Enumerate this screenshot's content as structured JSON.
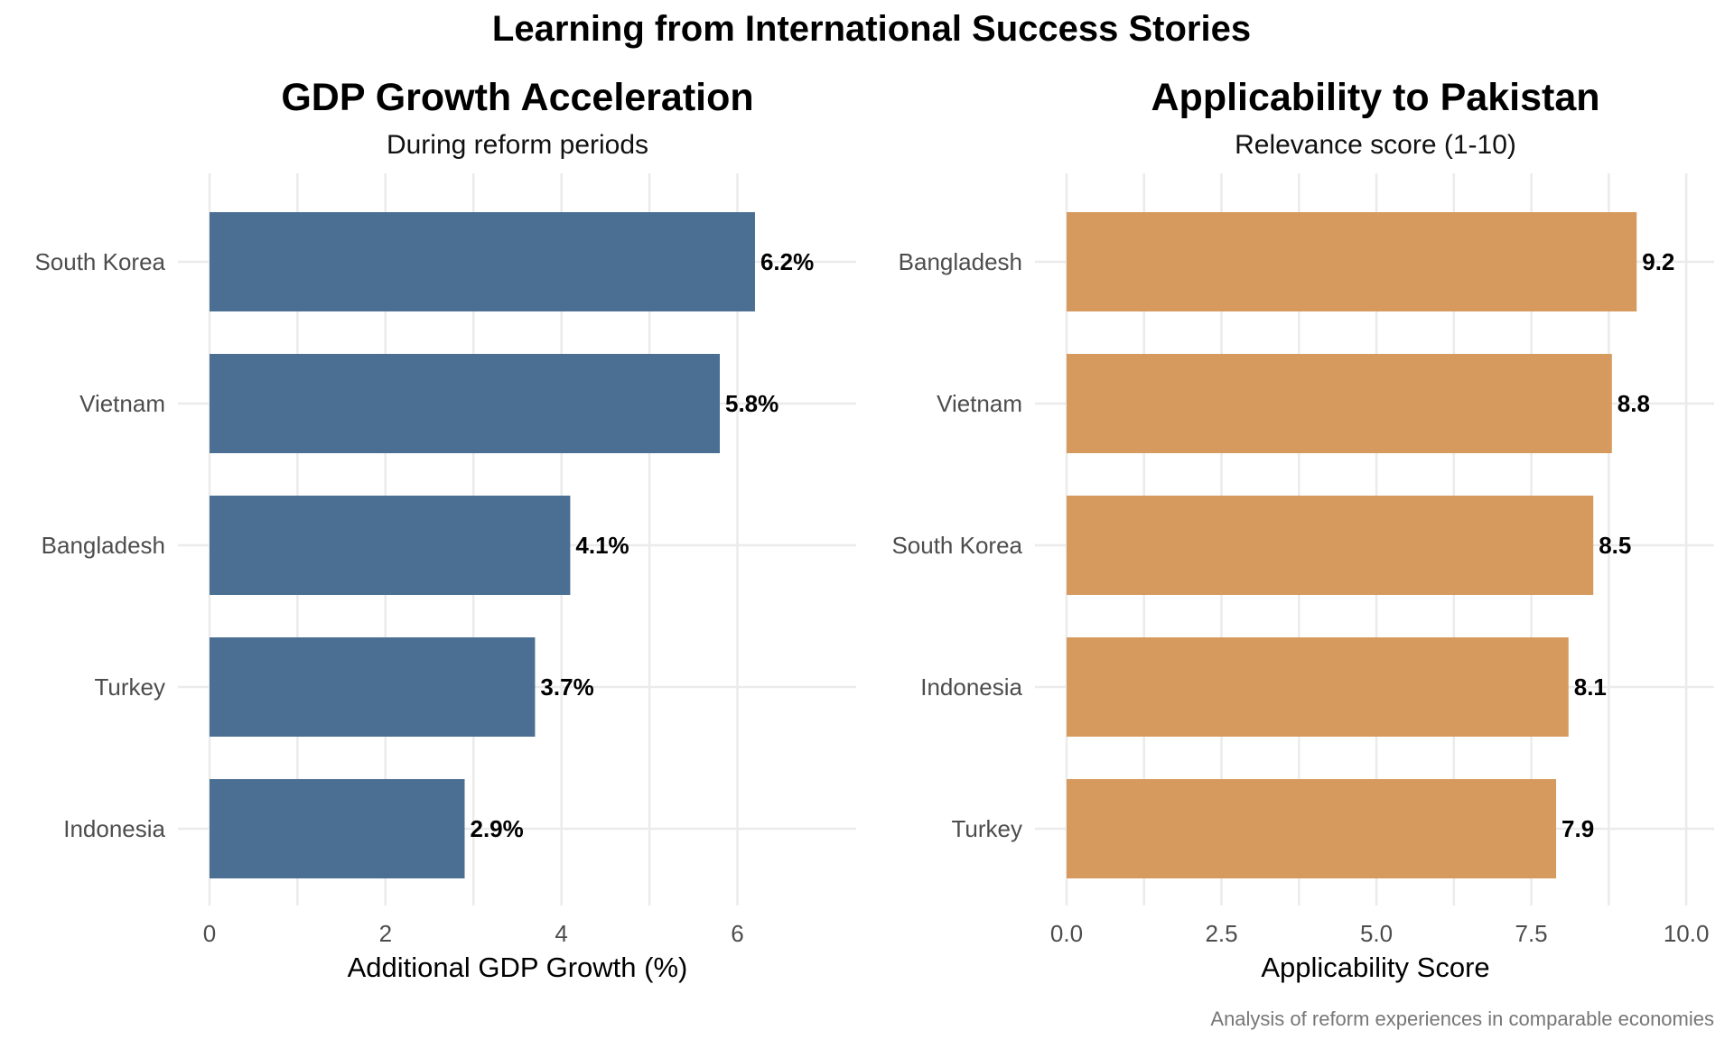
{
  "title": "Learning from International Success Stories",
  "caption": "Analysis of reform experiences in comparable economies",
  "chart_data": [
    {
      "type": "bar",
      "orientation": "horizontal",
      "title": "GDP Growth Acceleration",
      "subtitle": "During reform periods",
      "xlabel": "Additional GDP Growth (%)",
      "ylabel": "",
      "categories": [
        "South Korea",
        "Vietnam",
        "Bangladesh",
        "Turkey",
        "Indonesia"
      ],
      "values": [
        6.2,
        5.8,
        4.1,
        3.7,
        2.9
      ],
      "data_labels": [
        "6.2%",
        "5.8%",
        "4.1%",
        "3.7%",
        "2.9%"
      ],
      "xlim": [
        0,
        7.35
      ],
      "xticks": [
        0,
        2,
        4,
        6
      ],
      "xtick_labels": [
        "0",
        "2",
        "4",
        "6"
      ],
      "color": "#4a6f93",
      "grid": true,
      "legend": "none"
    },
    {
      "type": "bar",
      "orientation": "horizontal",
      "title": "Applicability to Pakistan",
      "subtitle": "Relevance score (1-10)",
      "xlabel": "Applicability Score",
      "ylabel": "",
      "categories": [
        "Bangladesh",
        "Vietnam",
        "South Korea",
        "Indonesia",
        "Turkey"
      ],
      "values": [
        9.2,
        8.8,
        8.5,
        8.1,
        7.9
      ],
      "data_labels": [
        "9.2",
        "8.8",
        "8.5",
        "8.1",
        "7.9"
      ],
      "xlim": [
        0,
        10.45
      ],
      "xticks": [
        0,
        2.5,
        5,
        7.5,
        10
      ],
      "xtick_labels": [
        "0.0",
        "2.5",
        "5.0",
        "7.5",
        "10.0"
      ],
      "color": "#d69a5f",
      "grid": true,
      "legend": "none"
    }
  ]
}
